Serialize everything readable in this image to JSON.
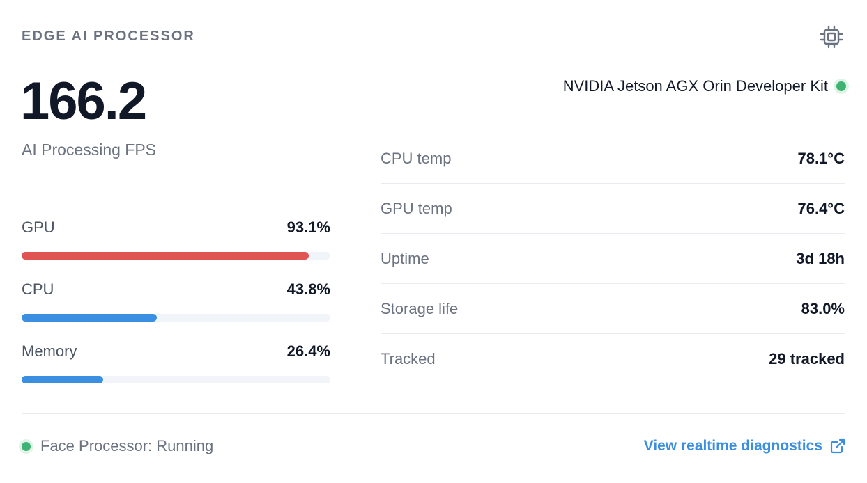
{
  "card": {
    "title": "EDGE AI PROCESSOR",
    "icon": "cpu-chip-icon"
  },
  "fps": {
    "value": "166.2",
    "label": "AI Processing FPS"
  },
  "device": {
    "name": "NVIDIA Jetson AGX Orin Developer Kit",
    "status_color": "#3fb373"
  },
  "usage": [
    {
      "label": "GPU",
      "value": "93.1%",
      "fraction": 0.931,
      "color": "#e05454"
    },
    {
      "label": "CPU",
      "value": "43.8%",
      "fraction": 0.438,
      "color": "#3b8fe0"
    },
    {
      "label": "Memory",
      "value": "26.4%",
      "fraction": 0.264,
      "color": "#3b8fe0"
    }
  ],
  "stats": [
    {
      "label": "CPU temp",
      "value": "78.1°C"
    },
    {
      "label": "GPU temp",
      "value": "76.4°C"
    },
    {
      "label": "Uptime",
      "value": "3d 18h"
    },
    {
      "label": "Storage life",
      "value": "83.0%"
    },
    {
      "label": "Tracked",
      "value": "29 tracked"
    }
  ],
  "footer": {
    "status_text": "Face Processor: Running",
    "status_color": "#3fb373",
    "link_text": "View realtime diagnostics",
    "link_icon": "external-link-icon",
    "link_color": "#3b8fe0"
  }
}
